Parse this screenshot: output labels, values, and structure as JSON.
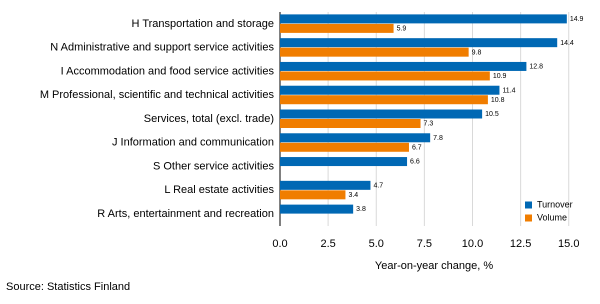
{
  "chart_data": {
    "type": "bar",
    "orientation": "horizontal",
    "categories": [
      "H Transportation and storage",
      "N Administrative and support service activities",
      "I Accommodation and food service activities",
      "M Professional, scientific and technical activities",
      "Services, total (excl. trade)",
      "J Information and communication",
      "S Other service activities",
      "L Real estate activities",
      "R Arts, entertainment and recreation"
    ],
    "series": [
      {
        "name": "Turnover",
        "color": "#0068b4",
        "values": [
          14.9,
          14.4,
          12.8,
          11.4,
          10.5,
          7.8,
          6.6,
          4.7,
          3.8
        ]
      },
      {
        "name": "Volume",
        "color": "#f07d00",
        "values": [
          5.9,
          9.8,
          10.9,
          10.8,
          7.3,
          6.7,
          null,
          3.4,
          null
        ]
      }
    ],
    "xlabel": "Year-on-year change, %",
    "xlim": [
      0,
      16
    ],
    "xticks": [
      {
        "value": 0,
        "label": "0.0"
      },
      2.5,
      {
        "value": 5,
        "label": "5.0"
      },
      7.5,
      {
        "value": 10,
        "label": "10.0"
      },
      12.5,
      {
        "value": 15,
        "label": "15.0"
      }
    ],
    "grid": true,
    "legend": "lower right",
    "source": "Source: Statistics Finland"
  }
}
